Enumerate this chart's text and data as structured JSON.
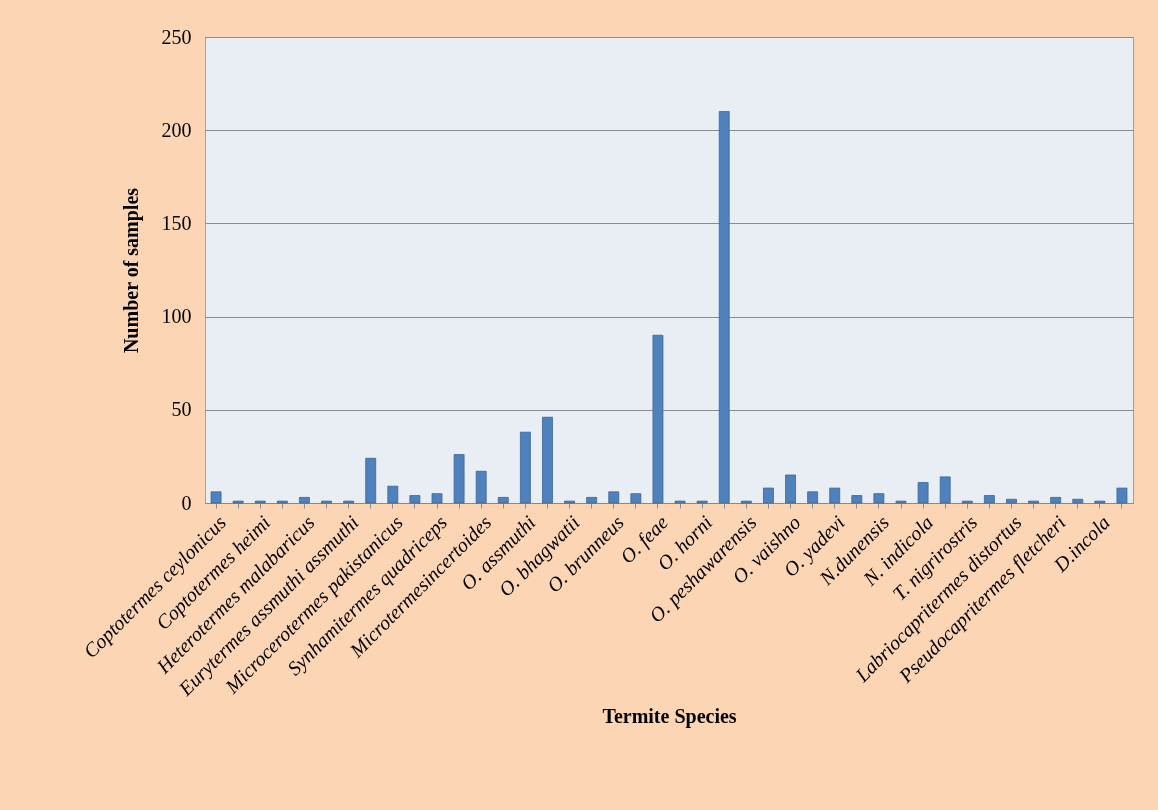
{
  "chart_data": {
    "type": "bar",
    "xlabel": "Termite Species",
    "ylabel": "Number of samples",
    "categories": [
      "Coptotermes ceylonicus",
      null,
      "Coptotermes heimi",
      null,
      "Heterotermes malabaricus",
      null,
      "Eurytermes assmuthi assmuthi",
      null,
      "Microcerotermes pakistanicus",
      null,
      "Synhamitermes quadriceps",
      null,
      "Microtermesincertoides",
      null,
      "O. assmuthi",
      null,
      "O. bhagwatii",
      null,
      "O. brunneus",
      null,
      "O. feae",
      null,
      "O. horni",
      null,
      "O. peshawarensis",
      null,
      "O. vaishno",
      null,
      "O. yadevi",
      null,
      "N.dunensis",
      null,
      "N. indicola",
      null,
      "T. nigrirostris",
      null,
      "Labriocapritermes distortus",
      null,
      "Pseudocapritermes fletcheri",
      null,
      "D.incola",
      null
    ],
    "values": [
      6,
      1,
      1,
      1,
      3,
      1,
      1,
      24,
      9,
      4,
      5,
      26,
      17,
      3,
      38,
      46,
      1,
      3,
      6,
      5,
      90,
      1,
      1,
      210,
      1,
      8,
      15,
      6,
      8,
      4,
      5,
      1,
      11,
      14,
      1,
      4,
      2,
      1,
      3,
      2,
      1,
      8
    ],
    "color": "#4f81bd",
    "ylim": [
      0,
      250
    ],
    "yticks": [
      0,
      50,
      100,
      150,
      200,
      250
    ],
    "grid": "y"
  }
}
